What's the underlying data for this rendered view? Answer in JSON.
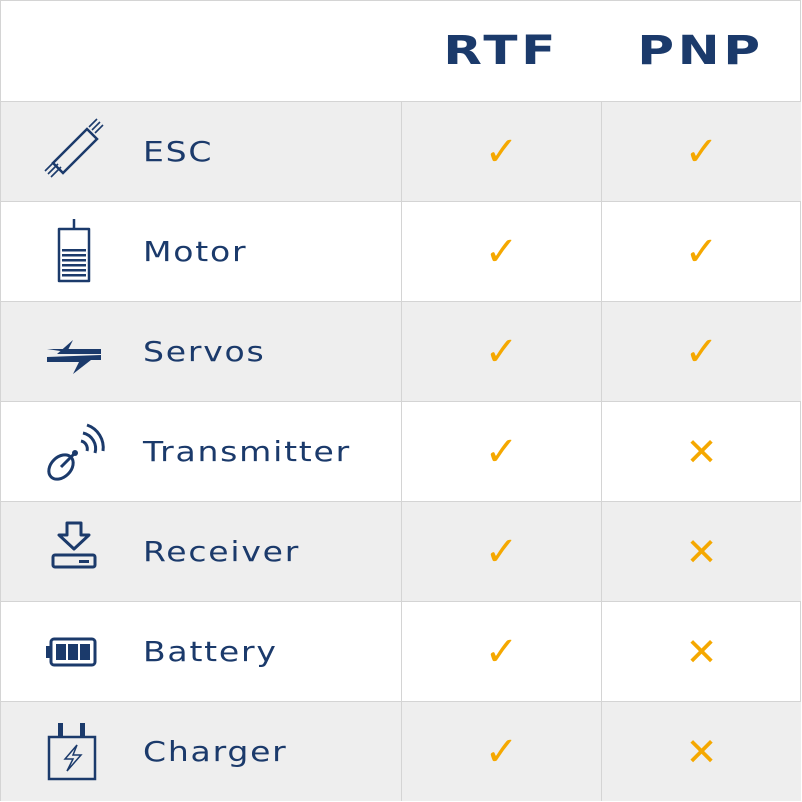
{
  "header": {
    "col1": "RTF",
    "col2": "PNP"
  },
  "colors": {
    "text": "#1b3a6b",
    "mark": "#f5a800",
    "alt_row": "#eeeeee"
  },
  "rows": [
    {
      "label": "ESC",
      "icon": "esc-icon",
      "rtf": "✓",
      "pnp": "✓"
    },
    {
      "label": "Motor",
      "icon": "motor-icon",
      "rtf": "✓",
      "pnp": "✓"
    },
    {
      "label": "Servos",
      "icon": "servos-icon",
      "rtf": "✓",
      "pnp": "✓"
    },
    {
      "label": "Transmitter",
      "icon": "transmitter-icon",
      "rtf": "✓",
      "pnp": "✕"
    },
    {
      "label": "Receiver",
      "icon": "receiver-icon",
      "rtf": "✓",
      "pnp": "✕"
    },
    {
      "label": "Battery",
      "icon": "battery-icon",
      "rtf": "✓",
      "pnp": "✕"
    },
    {
      "label": "Charger",
      "icon": "charger-icon",
      "rtf": "✓",
      "pnp": "✕"
    }
  ]
}
